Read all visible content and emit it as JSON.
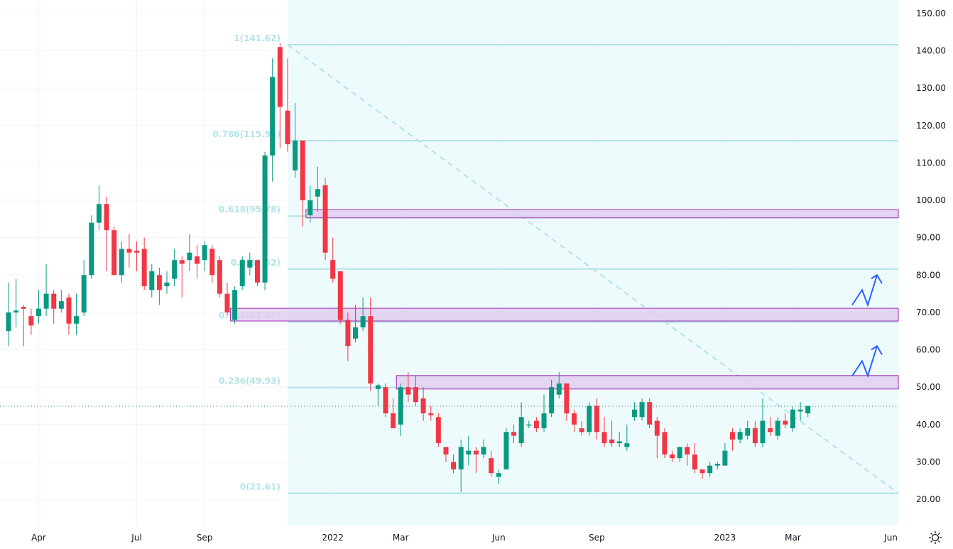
{
  "chart_data": {
    "type": "candlestick",
    "title": "",
    "interval": "weekly",
    "ylim": [
      20,
      150
    ],
    "y_ticks": [
      "150.00",
      "140.00",
      "130.00",
      "120.00",
      "110.00",
      "100.00",
      "90.00",
      "80.00",
      "70.00",
      "60.00",
      "50.00",
      "40.00",
      "30.00",
      "20.00"
    ],
    "x_ticks": [
      {
        "label": "Apr",
        "bar": 4
      },
      {
        "label": "Jul",
        "bar": 17
      },
      {
        "label": "Sep",
        "bar": 26
      },
      {
        "label": "2022",
        "bar": 43
      },
      {
        "label": "Mar",
        "bar": 52
      },
      {
        "label": "Jun",
        "bar": 65
      },
      {
        "label": "Sep",
        "bar": 78
      },
      {
        "label": "2023",
        "bar": 95
      },
      {
        "label": "Mar",
        "bar": 104
      },
      {
        "label": "Jun",
        "bar": 117
      }
    ],
    "candles_ohlc": [
      [
        65,
        78,
        61,
        70
      ],
      [
        70,
        79,
        66,
        70.5
      ],
      [
        71.5,
        72,
        61,
        71
      ],
      [
        69,
        71,
        64,
        66.5
      ],
      [
        69,
        76,
        67,
        71
      ],
      [
        71,
        83,
        69,
        75
      ],
      [
        75,
        76,
        67,
        71
      ],
      [
        71,
        76,
        70,
        73
      ],
      [
        74,
        75,
        64,
        67
      ],
      [
        67,
        75,
        64,
        69
      ],
      [
        70,
        84,
        69,
        80
      ],
      [
        80,
        96,
        79,
        94
      ],
      [
        94,
        104,
        92,
        99
      ],
      [
        99,
        101,
        81,
        92
      ],
      [
        92,
        93,
        80,
        80
      ],
      [
        80,
        89,
        78,
        87
      ],
      [
        87,
        91,
        82,
        86
      ],
      [
        86.5,
        89,
        81,
        86
      ],
      [
        87,
        90,
        76,
        77
      ],
      [
        76,
        83,
        74,
        81
      ],
      [
        80,
        82,
        72,
        76
      ],
      [
        77,
        81,
        75,
        78
      ],
      [
        79,
        87,
        77,
        84
      ],
      [
        84,
        85,
        74,
        83
      ],
      [
        84,
        91,
        81,
        86
      ],
      [
        85,
        88,
        79,
        83
      ],
      [
        84,
        89,
        81,
        88
      ],
      [
        87,
        88,
        78,
        80
      ],
      [
        84,
        85,
        74,
        75
      ],
      [
        75,
        78,
        69,
        70
      ],
      [
        68,
        77,
        67,
        76
      ],
      [
        77,
        85,
        76,
        84
      ],
      [
        82,
        86,
        80,
        84
      ],
      [
        84,
        84,
        77,
        78
      ],
      [
        78,
        113,
        76,
        112
      ],
      [
        112,
        138,
        105,
        133
      ],
      [
        141,
        142,
        114,
        125
      ],
      [
        124,
        138,
        113,
        115
      ],
      [
        108,
        126,
        106,
        116
      ],
      [
        116,
        116,
        93,
        100
      ],
      [
        96,
        104,
        94,
        100
      ],
      [
        101,
        109,
        97,
        103
      ],
      [
        104,
        106,
        84,
        86
      ],
      [
        84,
        90,
        78,
        79
      ],
      [
        81,
        81,
        67,
        68
      ],
      [
        68,
        70,
        57,
        61
      ],
      [
        63,
        72,
        62,
        66
      ],
      [
        66,
        74,
        65,
        69
      ],
      [
        69,
        74,
        49,
        51
      ],
      [
        49.5,
        51,
        45,
        50.5
      ],
      [
        50,
        51,
        42,
        43
      ],
      [
        43,
        47,
        40,
        39
      ],
      [
        40,
        51,
        37,
        50
      ],
      [
        50,
        54,
        46,
        48
      ],
      [
        50,
        53,
        45,
        46
      ],
      [
        47,
        50,
        41,
        43
      ],
      [
        43,
        45,
        41,
        42.5
      ],
      [
        42,
        43,
        34,
        35
      ],
      [
        34,
        34,
        30,
        32
      ],
      [
        30,
        32,
        27,
        28
      ],
      [
        28,
        36,
        22,
        34
      ],
      [
        32,
        37,
        29,
        33
      ],
      [
        33,
        34,
        27,
        32
      ],
      [
        32,
        36,
        31,
        34
      ],
      [
        31,
        33,
        26,
        27
      ],
      [
        26,
        28,
        24,
        27
      ],
      [
        28,
        39,
        28,
        38
      ],
      [
        38,
        40,
        35,
        37
      ],
      [
        35,
        46,
        34,
        42
      ],
      [
        40,
        41,
        39,
        40
      ],
      [
        41,
        42,
        38,
        39
      ],
      [
        39,
        48,
        38,
        43
      ],
      [
        43,
        52,
        42,
        50
      ],
      [
        48,
        54,
        47,
        51
      ],
      [
        51,
        51,
        41,
        43
      ],
      [
        43,
        44,
        38,
        40
      ],
      [
        39,
        41,
        37,
        38
      ],
      [
        38,
        46,
        37,
        45
      ],
      [
        45,
        47,
        36,
        38
      ],
      [
        38,
        42,
        34,
        35
      ],
      [
        36,
        41,
        34,
        35
      ],
      [
        35,
        38,
        34,
        35.5
      ],
      [
        34,
        40,
        33,
        35
      ],
      [
        42,
        46,
        41,
        44
      ],
      [
        42,
        47,
        41,
        46
      ],
      [
        46,
        47,
        39,
        40
      ],
      [
        41,
        42,
        31,
        37
      ],
      [
        38,
        39,
        31,
        32
      ],
      [
        32,
        33,
        30,
        31
      ],
      [
        31,
        34,
        30,
        34
      ],
      [
        34,
        35,
        29,
        32
      ],
      [
        32,
        35,
        27,
        28
      ],
      [
        28,
        28,
        25.5,
        27
      ],
      [
        27,
        30,
        26,
        29
      ],
      [
        29,
        30,
        28,
        29.5
      ],
      [
        29,
        35,
        29,
        33
      ],
      [
        38,
        39,
        33,
        36
      ],
      [
        36,
        39,
        35,
        38
      ],
      [
        37,
        41,
        36,
        39
      ],
      [
        39,
        41,
        34,
        35
      ],
      [
        35,
        47,
        34,
        41
      ],
      [
        39,
        42,
        37,
        38
      ],
      [
        37,
        42,
        36,
        41
      ],
      [
        41,
        43,
        39,
        40
      ],
      [
        39,
        45,
        38,
        44
      ],
      [
        43.5,
        46,
        41,
        44
      ],
      [
        43,
        45,
        42,
        45
      ]
    ],
    "last_price": 44.9,
    "fib_retracement": {
      "from": {
        "bar": 37,
        "price": 141.62
      },
      "to": {
        "bar": 118,
        "price": 21.61
      },
      "levels": [
        {
          "label": "1(141.62)",
          "price": 141.62
        },
        {
          "label": "0.786(115.94)",
          "price": 115.94
        },
        {
          "label": "0.618(95.78)",
          "price": 95.78
        },
        {
          "label": "0.5(81.62)",
          "price": 81.62
        },
        {
          "label": "0.382(67.45)",
          "price": 67.45
        },
        {
          "label": "0.236(49.93)",
          "price": 49.93
        },
        {
          "label": "0(21.61)",
          "price": 21.61
        }
      ]
    },
    "zones": [
      {
        "from_bar": 40,
        "top": 97.5,
        "bottom": 95.3
      },
      {
        "from_bar": 30,
        "top": 71.1,
        "bottom": 67.7
      },
      {
        "from_bar": 52,
        "top": 53.1,
        "bottom": 49.5
      }
    ],
    "projection_arrows": [
      {
        "start": 72,
        "peak1": 76,
        "dip": 72,
        "end": 80
      },
      {
        "start": 53,
        "peak1": 57,
        "dip": 53,
        "end": 61
      }
    ]
  },
  "colors": {
    "up": "#089981",
    "down": "#f23645",
    "fib": "#b2e3ea",
    "fib_bg": "#eefbfc",
    "zone_fill": "#e1cdef",
    "zone_border": "#9c27b0",
    "arrow": "#2962ff",
    "grid": "#f0f3fa"
  },
  "icons": {
    "settings": "gear-icon"
  }
}
